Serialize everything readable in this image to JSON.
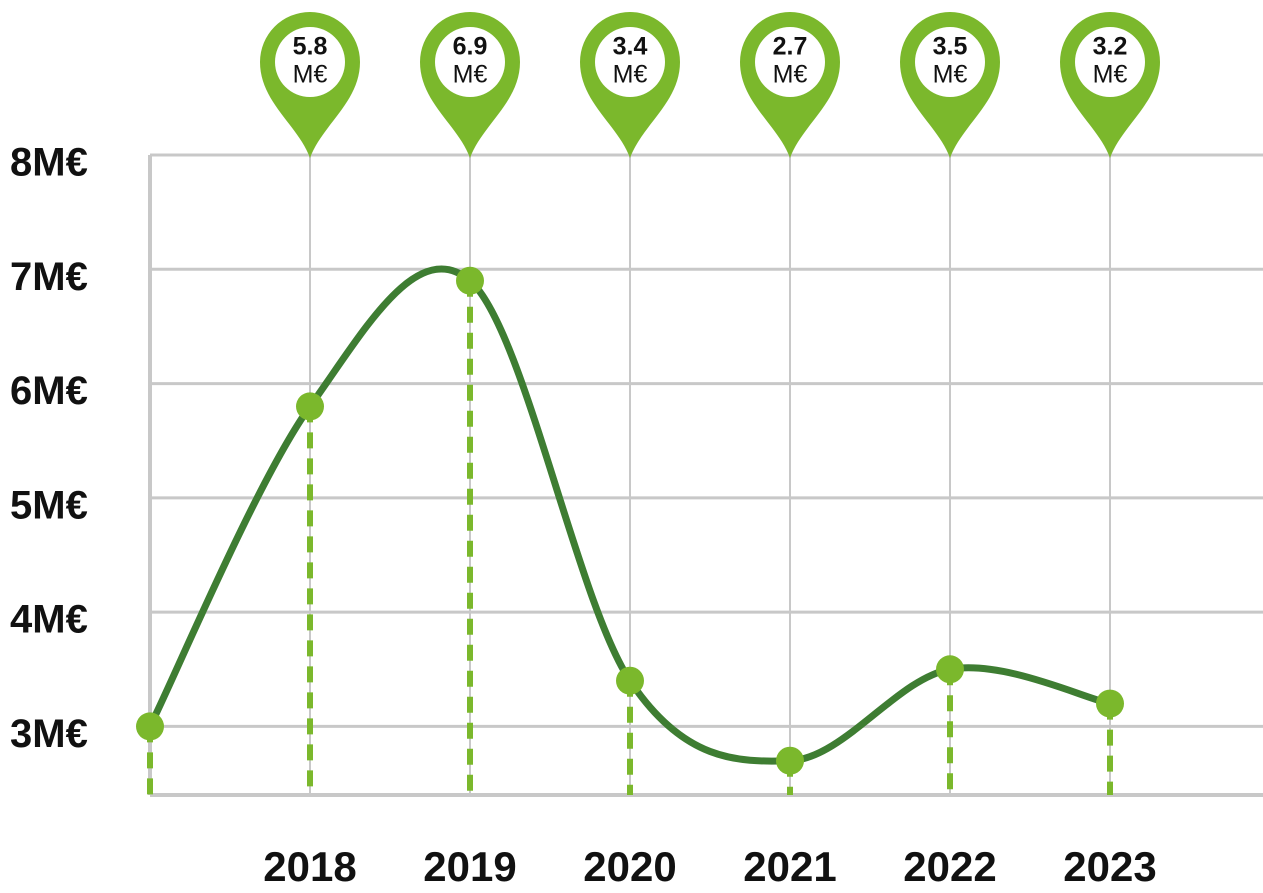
{
  "chart_data": {
    "type": "line",
    "categories": [
      null,
      "2018",
      "2019",
      "2020",
      "2021",
      "2022",
      "2023"
    ],
    "values": [
      3.0,
      5.8,
      6.9,
      3.4,
      2.7,
      3.5,
      3.2
    ],
    "value_labels": [
      null,
      "5.8",
      "6.9",
      "3.4",
      "2.7",
      "3.5",
      "3.2"
    ],
    "unit": "M€",
    "color": "#3e7d32",
    "marker_color": "#7bb82c",
    "ylim": [
      2.4,
      8
    ],
    "yticks": [
      {
        "value": 3,
        "label": "3M€"
      },
      {
        "value": 4,
        "label": "4M€"
      },
      {
        "value": 5,
        "label": "5M€"
      },
      {
        "value": 6,
        "label": "6M€"
      },
      {
        "value": 7,
        "label": "7M€"
      },
      {
        "value": 8,
        "label": "8M€"
      }
    ],
    "grid": true
  }
}
